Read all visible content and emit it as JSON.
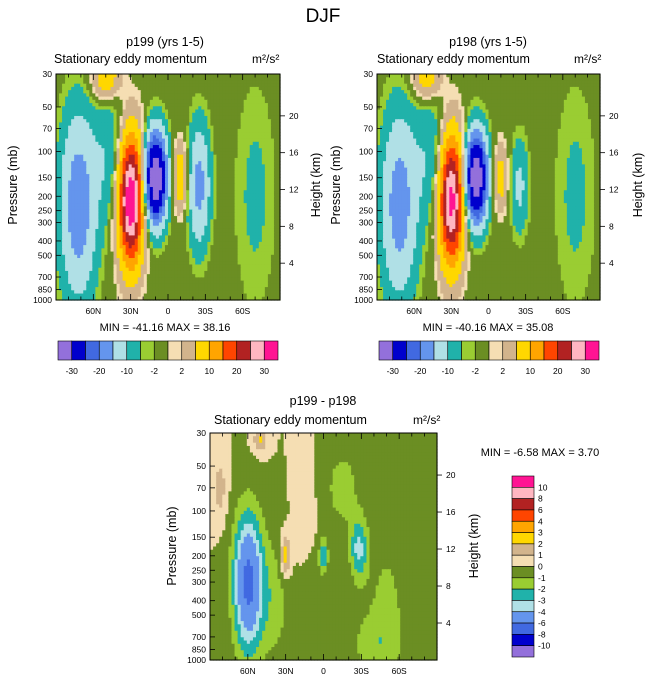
{
  "figure_title": "DJF",
  "palette_a": [
    "#9370db",
    "#0000cd",
    "#4169e1",
    "#6495ed",
    "#b0e0e6",
    "#20b2aa",
    "#9acd32",
    "#6b8e23",
    "#f5deb3",
    "#d2b48c",
    "#ffd700",
    "#ffa500",
    "#ff4500",
    "#b22222",
    "#ffb6c1",
    "#ff1493"
  ],
  "palette_diff": [
    "#9370db",
    "#0000cd",
    "#4169e1",
    "#6495ed",
    "#b0e0e6",
    "#20b2aa",
    "#9acd32",
    "#6b8e23",
    "#f5deb3",
    "#d2b48c",
    "#ffd700",
    "#ffa500",
    "#ff4500",
    "#b22222",
    "#ffb6c1",
    "#ff1493"
  ],
  "panels": [
    {
      "title": "p199 (yrs 1-5)",
      "left_label": "Stationary eddy momentum",
      "units": "m²/s²",
      "y_label": "Pressure (mb)",
      "y2_label": "Height (km)",
      "min_max": "MIN = -41.16   MAX =  38.16",
      "colorbar_labels": [
        "-30",
        "-20",
        "-10",
        "-2",
        "2",
        "10",
        "20",
        "30"
      ]
    },
    {
      "title": "p198 (yrs 1-5)",
      "left_label": "Stationary eddy momentum",
      "units": "m²/s²",
      "y_label": "Pressure (mb)",
      "y2_label": "Height (km)",
      "min_max": "MIN = -40.16   MAX =  35.08",
      "colorbar_labels": [
        "-30",
        "-20",
        "-10",
        "-2",
        "2",
        "10",
        "20",
        "30"
      ]
    },
    {
      "title": "p199 - p198",
      "left_label": "Stationary eddy momentum",
      "units": "m²/s²",
      "y_label": "Pressure (mb)",
      "y2_label": "Height (km)",
      "min_max": "MIN =  -6.58   MAX =   3.70",
      "colorbar_labels": [
        "10",
        "8",
        "6",
        "4",
        "3",
        "2",
        "1",
        "0",
        "-1",
        "-2",
        "-3",
        "-4",
        "-6",
        "-8",
        "-10"
      ]
    }
  ],
  "chart_data": [
    {
      "type": "heatmap",
      "title": "p199 (yrs 1-5)",
      "subtitle": "Stationary eddy momentum",
      "units": "m²/s²",
      "ylabel": "Pressure (mb)",
      "y2label": "Height (km)",
      "x_ticks": [
        "60N",
        "30N",
        "0",
        "30S",
        "60S"
      ],
      "x_tick_lat": [
        60,
        30,
        0,
        -30,
        -60
      ],
      "xlim_lat": [
        90,
        -90
      ],
      "y_ticks": [
        30,
        50,
        70,
        100,
        150,
        200,
        250,
        300,
        400,
        500,
        700,
        850,
        1000
      ],
      "ylim_mb": [
        30,
        1000
      ],
      "y2_ticks": [
        4,
        8,
        12,
        16,
        20
      ],
      "min": -41.16,
      "max": 38.16,
      "levels": [
        -30,
        -20,
        -15,
        -10,
        -5,
        -2,
        -1,
        1,
        2,
        5,
        10,
        15,
        20,
        25,
        30
      ],
      "blobs": [
        {
          "lat": 72,
          "p": 230,
          "value": -14,
          "dlat": 10,
          "dlogp": 0.42
        },
        {
          "lat": 30,
          "p": 210,
          "value": 36,
          "dlat": 7,
          "dlogp": 0.3
        },
        {
          "lat": 10,
          "p": 150,
          "value": -40,
          "dlat": 6,
          "dlogp": 0.2
        },
        {
          "lat": -10,
          "p": 150,
          "value": 9,
          "dlat": 4,
          "dlogp": 0.16
        },
        {
          "lat": -25,
          "p": 170,
          "value": -12,
          "dlat": 6,
          "dlogp": 0.28
        },
        {
          "lat": 45,
          "p": 110,
          "value": -5,
          "dlat": 10,
          "dlogp": 0.3
        },
        {
          "lat": 50,
          "p": 32,
          "value": 9,
          "dlat": 8,
          "dlogp": 0.1
        },
        {
          "lat": -70,
          "p": 200,
          "value": -2.5,
          "dlat": 12,
          "dlogp": 0.55
        }
      ]
    },
    {
      "type": "heatmap",
      "title": "p198 (yrs 1-5)",
      "subtitle": "Stationary eddy momentum",
      "units": "m²/s²",
      "ylabel": "Pressure (mb)",
      "y2label": "Height (km)",
      "x_ticks": [
        "60N",
        "30N",
        "0",
        "30S",
        "60S"
      ],
      "x_tick_lat": [
        60,
        30,
        0,
        -30,
        -60
      ],
      "xlim_lat": [
        90,
        -90
      ],
      "y_ticks": [
        30,
        50,
        70,
        100,
        150,
        200,
        250,
        300,
        400,
        500,
        700,
        850,
        1000
      ],
      "ylim_mb": [
        30,
        1000
      ],
      "y2_ticks": [
        4,
        8,
        12,
        16,
        20
      ],
      "min": -40.16,
      "max": 35.08,
      "levels": [
        -30,
        -20,
        -15,
        -10,
        -5,
        -2,
        -1,
        1,
        2,
        5,
        10,
        15,
        20,
        25,
        30
      ],
      "blobs": [
        {
          "lat": 72,
          "p": 230,
          "value": -13,
          "dlat": 10,
          "dlogp": 0.42
        },
        {
          "lat": 30,
          "p": 210,
          "value": 33,
          "dlat": 7,
          "dlogp": 0.3
        },
        {
          "lat": 10,
          "p": 150,
          "value": -39,
          "dlat": 6,
          "dlogp": 0.2
        },
        {
          "lat": -10,
          "p": 150,
          "value": 7,
          "dlat": 4,
          "dlogp": 0.16
        },
        {
          "lat": -25,
          "p": 170,
          "value": -6,
          "dlat": 5,
          "dlogp": 0.22
        },
        {
          "lat": 45,
          "p": 110,
          "value": -5,
          "dlat": 10,
          "dlogp": 0.3
        },
        {
          "lat": 50,
          "p": 32,
          "value": 8,
          "dlat": 8,
          "dlogp": 0.1
        },
        {
          "lat": -70,
          "p": 200,
          "value": -2.5,
          "dlat": 12,
          "dlogp": 0.55
        }
      ]
    },
    {
      "type": "heatmap",
      "title": "p199 - p198",
      "subtitle": "Stationary eddy momentum",
      "units": "m²/s²",
      "ylabel": "Pressure (mb)",
      "y2label": "Height (km)",
      "x_ticks": [
        "60N",
        "30N",
        "0",
        "30S",
        "60S"
      ],
      "x_tick_lat": [
        60,
        30,
        0,
        -30,
        -60
      ],
      "xlim_lat": [
        90,
        -90
      ],
      "y_ticks": [
        30,
        50,
        70,
        100,
        150,
        200,
        250,
        300,
        400,
        500,
        700,
        850,
        1000
      ],
      "ylim_mb": [
        30,
        1000
      ],
      "y2_ticks": [
        4,
        8,
        12,
        16,
        20
      ],
      "min": -6.58,
      "max": 3.7,
      "levels": [
        -10,
        -8,
        -6,
        -4,
        -3,
        -2,
        -1,
        0,
        1,
        2,
        3,
        4,
        6,
        8,
        10
      ],
      "blobs": [
        {
          "lat": 60,
          "p": 300,
          "value": -6.5,
          "dlat": 8,
          "dlogp": 0.32
        },
        {
          "lat": 30,
          "p": 200,
          "value": 3,
          "dlat": 3,
          "dlogp": 0.1
        },
        {
          "lat": 0,
          "p": 200,
          "value": -3,
          "dlat": 2.5,
          "dlogp": 0.08
        },
        {
          "lat": -28,
          "p": 180,
          "value": -3.2,
          "dlat": 5,
          "dlogp": 0.15
        },
        {
          "lat": 50,
          "p": 33,
          "value": 2.2,
          "dlat": 4,
          "dlogp": 0.06
        },
        {
          "lat": 82,
          "p": 70,
          "value": 1.5,
          "dlat": 4,
          "dlogp": 0.15
        },
        {
          "lat": 40,
          "p": 400,
          "value": -1.5,
          "dlat": 10,
          "dlogp": 0.3
        },
        {
          "lat": -50,
          "p": 400,
          "value": -1.2,
          "dlat": 12,
          "dlogp": 0.35
        },
        {
          "lat": 10,
          "p": 500,
          "value": -1,
          "dlat": 6,
          "dlogp": 0.3
        },
        {
          "lat": -15,
          "p": 70,
          "value": -1.5,
          "dlat": 10,
          "dlogp": 0.2
        },
        {
          "lat": 15,
          "p": 120,
          "value": 0.7,
          "dlat": 6,
          "dlogp": 0.25
        },
        {
          "lat": -40,
          "p": 800,
          "value": -1.3,
          "dlat": 15,
          "dlogp": 0.15
        }
      ]
    }
  ]
}
